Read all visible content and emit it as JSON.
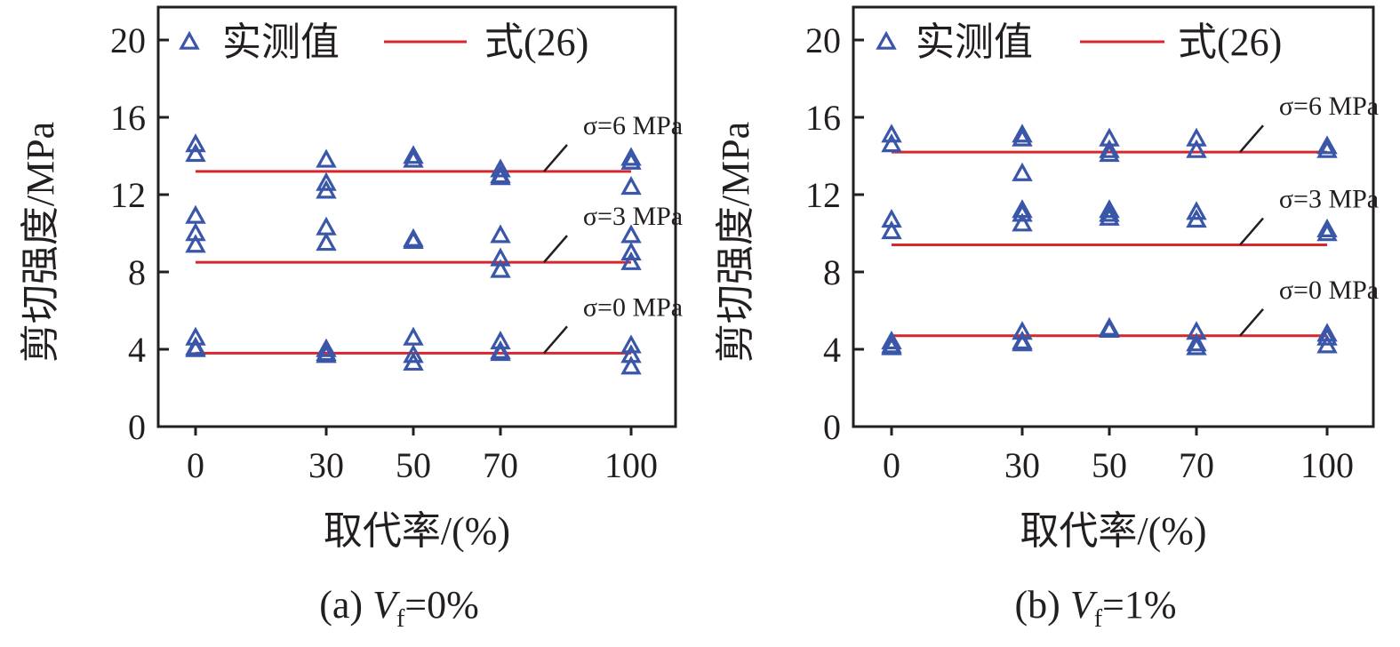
{
  "colors": {
    "marker": "#3a56a8",
    "line": "#d7262e",
    "axis": "#231f20"
  },
  "legend": {
    "measured": "实测值",
    "formula": "式(26)"
  },
  "chart_data": [
    {
      "type": "scatter",
      "caption_prefix": "(a) ",
      "caption_var": "V",
      "caption_sub": "f",
      "caption_suffix": "=0%",
      "xlabel": "取代率/(%)",
      "ylabel": "剪切强度/MPa",
      "xticks": [
        0,
        30,
        50,
        70,
        100
      ],
      "yticks": [
        0,
        4,
        8,
        12,
        16,
        20
      ],
      "ylim": [
        0,
        20
      ],
      "measured": [
        {
          "x": 0,
          "y": [
            14.6,
            14.1,
            10.9,
            10.0,
            9.4,
            4.6,
            4.1,
            4.0
          ]
        },
        {
          "x": 30,
          "y": [
            13.8,
            12.6,
            12.2,
            10.3,
            9.5,
            4.0,
            3.8,
            3.7
          ]
        },
        {
          "x": 50,
          "y": [
            14.0,
            13.8,
            9.7,
            9.6,
            4.6,
            3.7,
            3.3
          ]
        },
        {
          "x": 70,
          "y": [
            13.3,
            13.0,
            12.9,
            9.9,
            8.7,
            8.1,
            4.4,
            3.9,
            3.8
          ]
        },
        {
          "x": 100,
          "y": [
            13.9,
            13.7,
            12.4,
            9.9,
            9.0,
            8.5,
            4.2,
            3.7,
            3.1
          ]
        }
      ],
      "formula_lines": [
        {
          "label": "σ=6 MPa",
          "y": 13.2
        },
        {
          "label": "σ=3 MPa",
          "y": 8.5
        },
        {
          "label": "σ=0 MPa",
          "y": 3.8
        }
      ]
    },
    {
      "type": "scatter",
      "caption_prefix": "(b) ",
      "caption_var": "V",
      "caption_sub": "f",
      "caption_suffix": "=1%",
      "xlabel": "取代率/(%)",
      "ylabel": "剪切强度/MPa",
      "xticks": [
        0,
        30,
        50,
        70,
        100
      ],
      "yticks": [
        0,
        4,
        8,
        12,
        16,
        20
      ],
      "ylim": [
        0,
        20
      ],
      "measured": [
        {
          "x": 0,
          "y": [
            15.1,
            14.6,
            10.7,
            10.1,
            4.4,
            4.2,
            4.1
          ]
        },
        {
          "x": 30,
          "y": [
            15.1,
            14.9,
            13.1,
            11.2,
            11.0,
            10.5,
            4.9,
            4.4,
            4.3
          ]
        },
        {
          "x": 50,
          "y": [
            14.9,
            14.3,
            14.1,
            11.2,
            11.0,
            10.8,
            5.1,
            5.0
          ]
        },
        {
          "x": 70,
          "y": [
            14.9,
            14.3,
            11.1,
            10.7,
            4.9,
            4.3,
            4.1
          ]
        },
        {
          "x": 100,
          "y": [
            14.5,
            14.3,
            10.2,
            10.0,
            4.8,
            4.6,
            4.2
          ]
        }
      ],
      "formula_lines": [
        {
          "label": "σ=6 MPa",
          "y": 14.2
        },
        {
          "label": "σ=3 MPa",
          "y": 9.4
        },
        {
          "label": "σ=0 MPa",
          "y": 4.7
        }
      ]
    }
  ]
}
